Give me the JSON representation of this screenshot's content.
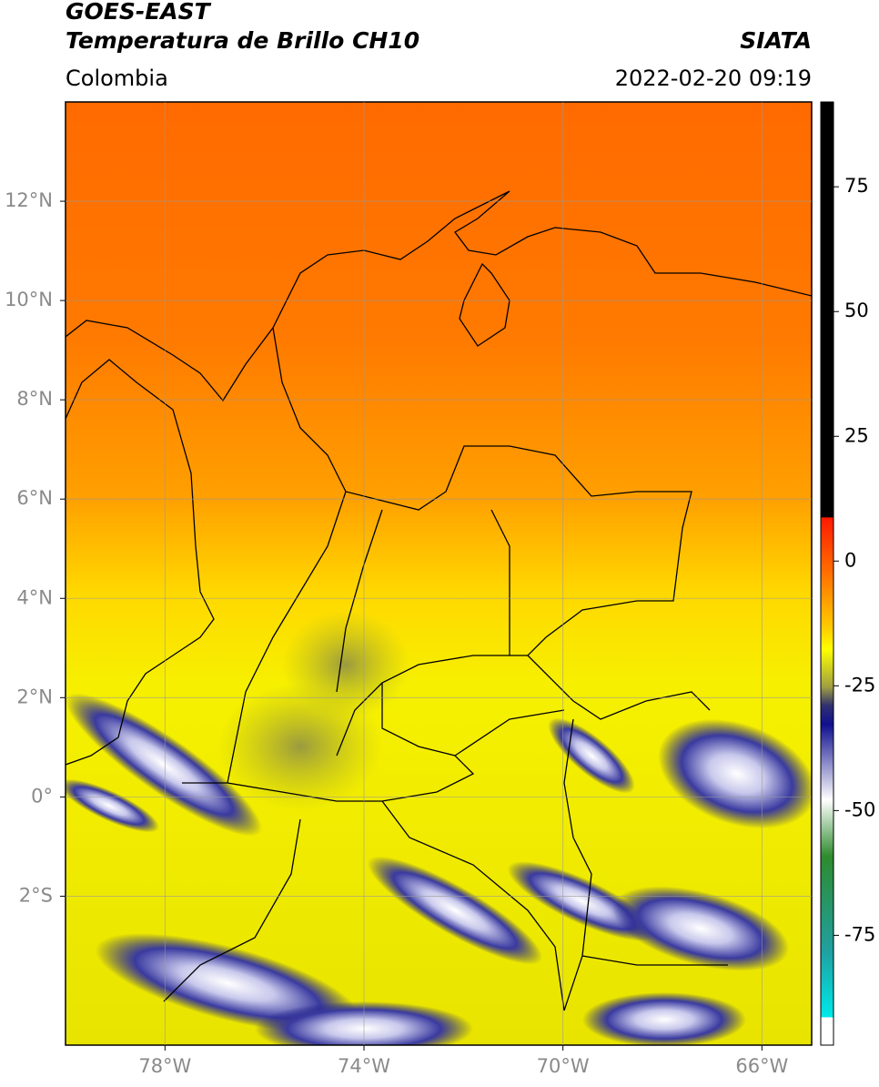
{
  "header": {
    "title": "GOES-EAST",
    "subtitle": "Temperatura de Brillo CH10",
    "source": "SIATA",
    "region": "Colombia",
    "datetime": "2022-02-20 09:19"
  },
  "map": {
    "xlim": [
      -80,
      -65
    ],
    "ylim": [
      -5,
      14
    ],
    "xticks": [
      {
        "value": -78,
        "label": "78°W"
      },
      {
        "value": -74,
        "label": "74°W"
      },
      {
        "value": -70,
        "label": "70°W"
      },
      {
        "value": -66,
        "label": "66°W"
      }
    ],
    "yticks": [
      {
        "value": 12,
        "label": "12°N"
      },
      {
        "value": 10,
        "label": "10°N"
      },
      {
        "value": 8,
        "label": "8°N"
      },
      {
        "value": 6,
        "label": "6°N"
      },
      {
        "value": 4,
        "label": "4°N"
      },
      {
        "value": 2,
        "label": "2°N"
      },
      {
        "value": 0,
        "label": "0°"
      },
      {
        "value": -2,
        "label": "2°S"
      }
    ],
    "grid": true,
    "colorbar": {
      "lim": [
        -97,
        92
      ],
      "ticks": [
        75,
        50,
        25,
        0,
        -25,
        -50,
        -75
      ]
    }
  }
}
